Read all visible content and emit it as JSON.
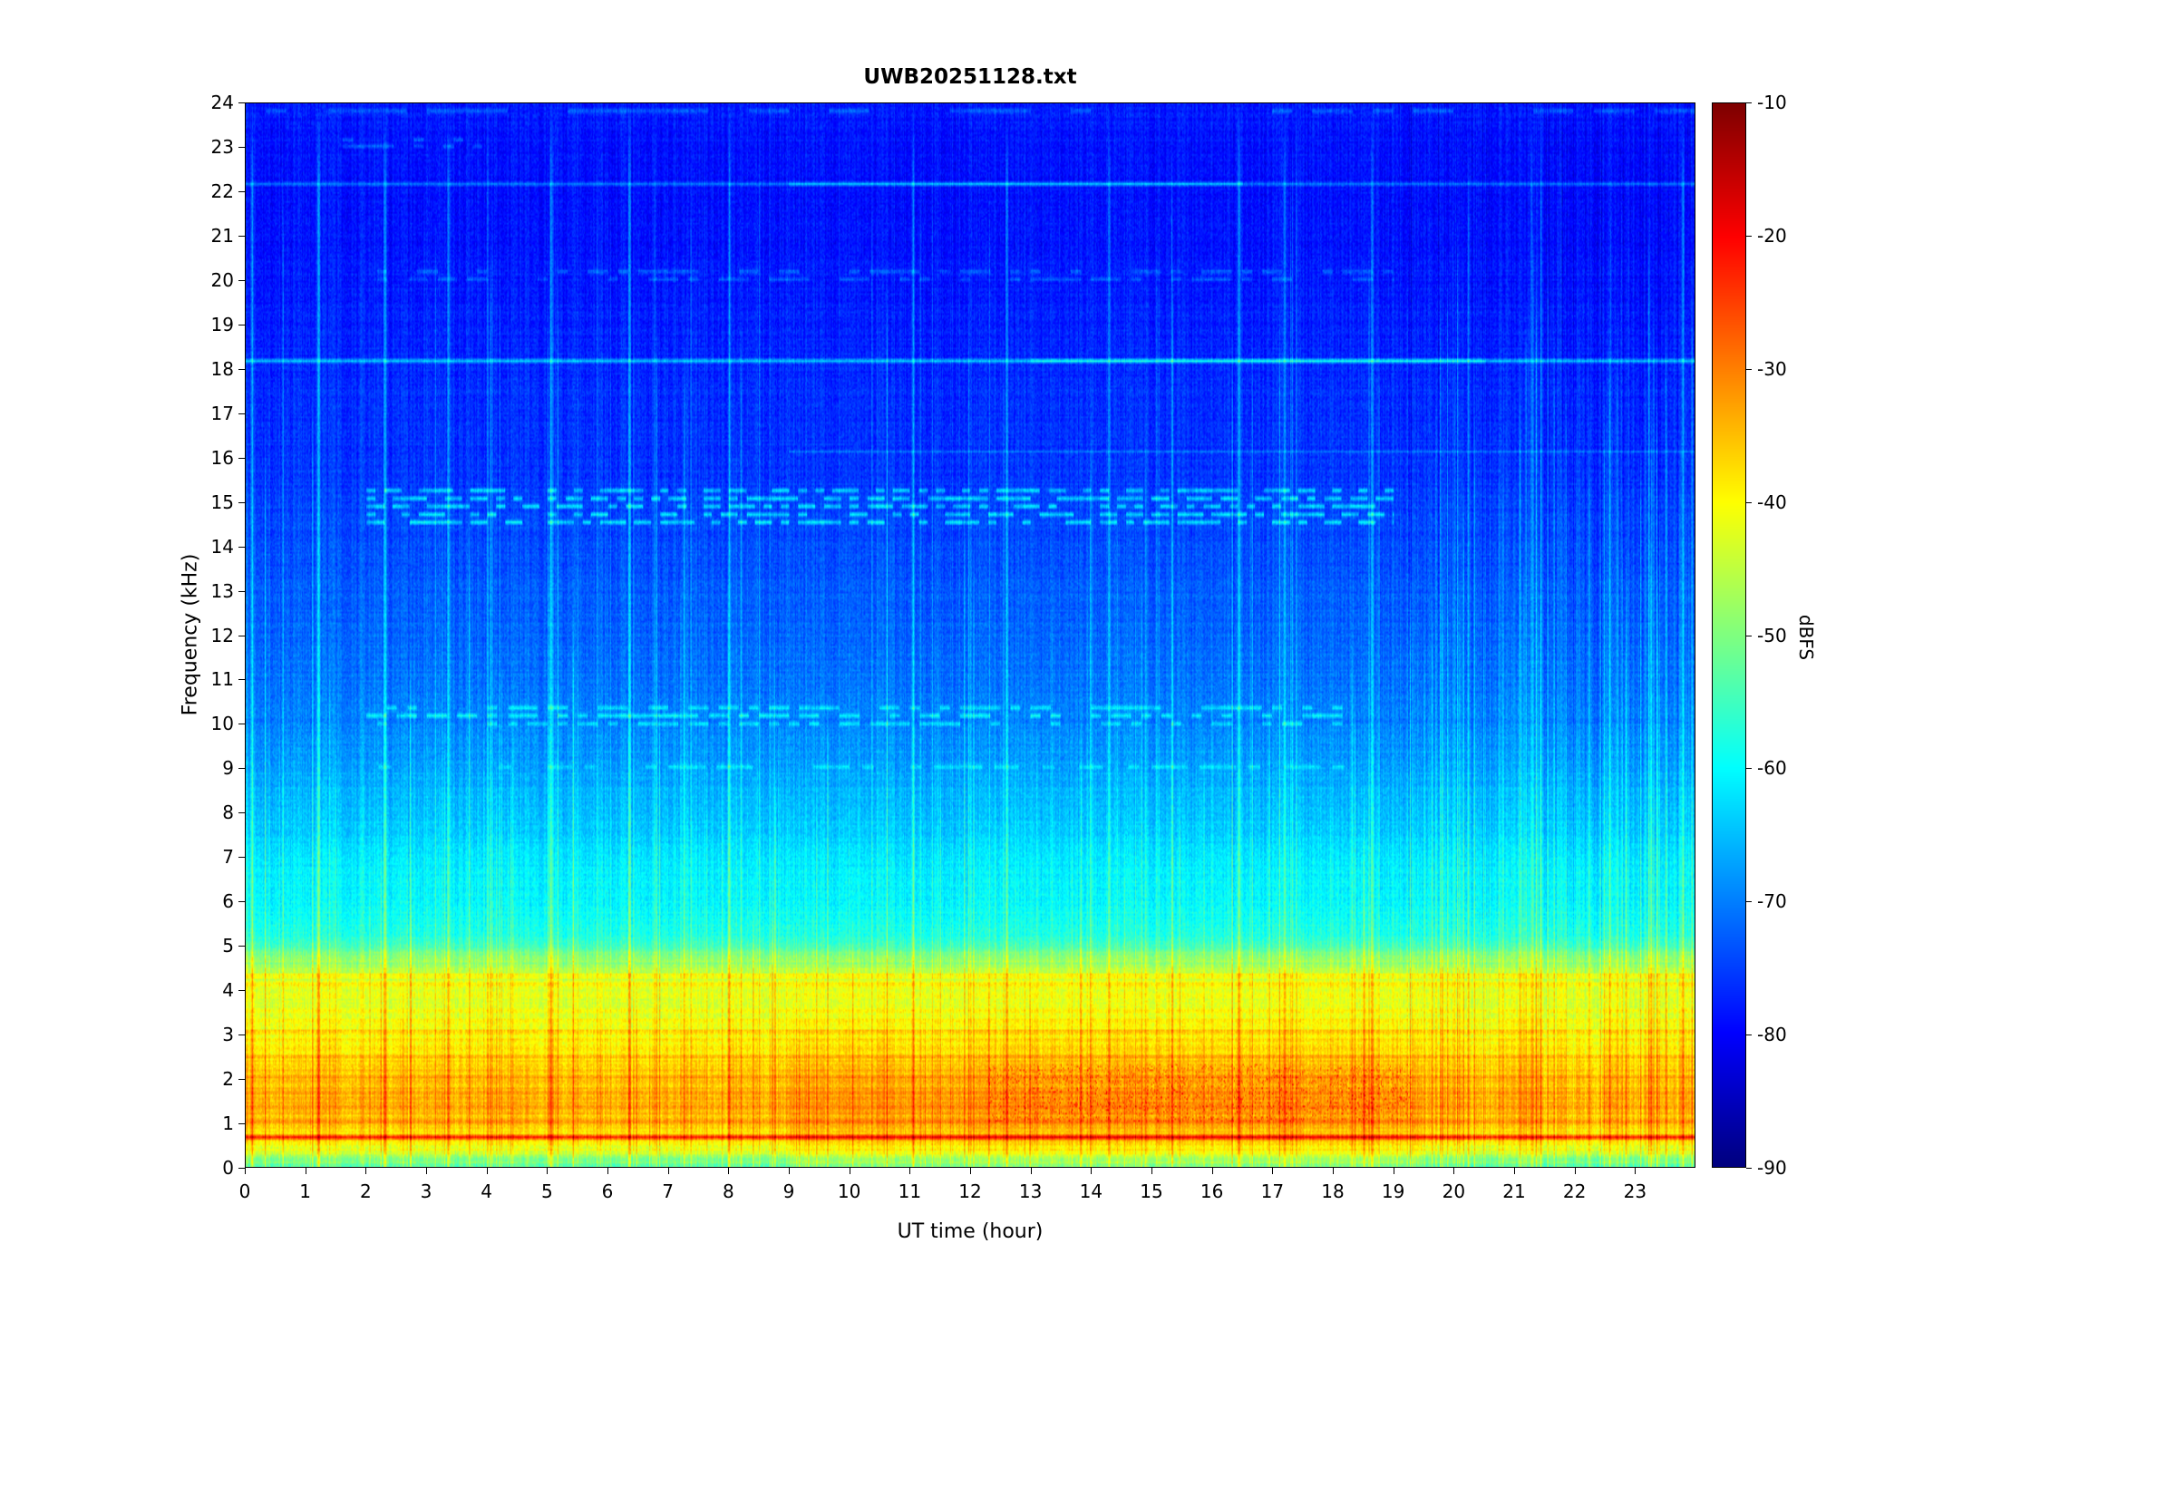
{
  "title": "UWB20251128.txt",
  "chart_data": {
    "type": "heatmap",
    "title": "UWB20251128.txt",
    "xlabel": "UT time (hour)",
    "ylabel": "Frequency (kHz)",
    "colorbar_label": "dBFS",
    "xlim": [
      0,
      24
    ],
    "ylim": [
      0,
      24
    ],
    "zlim": [
      -90,
      -10
    ],
    "x_tick_labels": [
      "0",
      "1",
      "2",
      "3",
      "4",
      "5",
      "6",
      "7",
      "8",
      "9",
      "10",
      "11",
      "12",
      "13",
      "14",
      "15",
      "16",
      "17",
      "18",
      "19",
      "20",
      "21",
      "22",
      "23"
    ],
    "y_tick_labels": [
      "0",
      "1",
      "2",
      "3",
      "4",
      "5",
      "6",
      "7",
      "8",
      "9",
      "10",
      "11",
      "12",
      "13",
      "14",
      "15",
      "16",
      "17",
      "18",
      "19",
      "20",
      "21",
      "22",
      "23",
      "24"
    ],
    "colorbar_tick_labels": [
      "-10",
      "-20",
      "-30",
      "-40",
      "-50",
      "-60",
      "-70",
      "-80",
      "-90"
    ],
    "colormap": "jet",
    "colormap_stops": [
      "#000080",
      "#0000ff",
      "#00ffff",
      "#80ff80",
      "#ffff00",
      "#ff8000",
      "#ff0000",
      "#800000"
    ],
    "background_profile_dbfs": [
      [
        0,
        -52
      ],
      [
        0.3,
        -47
      ],
      [
        0.5,
        -40
      ],
      [
        0.8,
        -37
      ],
      [
        1.2,
        -35
      ],
      [
        1.8,
        -35
      ],
      [
        2.4,
        -37
      ],
      [
        3,
        -40
      ],
      [
        3.6,
        -42
      ],
      [
        4.3,
        -44
      ],
      [
        4.7,
        -50
      ],
      [
        5.2,
        -58
      ],
      [
        6,
        -60
      ],
      [
        7,
        -62
      ],
      [
        8,
        -65
      ],
      [
        9,
        -67
      ],
      [
        10,
        -70
      ],
      [
        12,
        -72
      ],
      [
        14,
        -74
      ],
      [
        16,
        -76
      ],
      [
        18,
        -77
      ],
      [
        20,
        -78
      ],
      [
        22,
        -79
      ],
      [
        24,
        -78
      ]
    ],
    "features": {
      "horizontal_lines": [
        {
          "freq_khz": 0.65,
          "halfwidth_khz": 0.08,
          "boost_db": 16,
          "t0": 0,
          "t1": 24
        },
        {
          "freq_khz": 18.2,
          "halfwidth_khz": 0.07,
          "boost_db": 13,
          "t0": 0,
          "t1": 24,
          "peak_t0": 13,
          "peak_t1": 20.5,
          "peak_extra_db": 6
        },
        {
          "freq_khz": 22.2,
          "halfwidth_khz": 0.06,
          "boost_db": 9,
          "t0": 0,
          "t1": 24,
          "peak_t0": 9,
          "peak_t1": 16.5,
          "peak_extra_db": 6
        },
        {
          "freq_khz": 16.15,
          "halfwidth_khz": 0.05,
          "boost_db": 5,
          "t0": 9,
          "t1": 24
        }
      ],
      "dashed_bands": [
        {
          "rows_khz": [
            14.55,
            14.73,
            14.91,
            15.09,
            15.27
          ],
          "boost_db": 15,
          "t0": 2,
          "t1": 19,
          "duty": 0.55,
          "segments_per_hour": 7
        },
        {
          "rows_khz": [
            10.0,
            10.18,
            10.36
          ],
          "boost_db": 11,
          "t0": 2,
          "t1": 18.3,
          "duty": 0.5,
          "segments_per_hour": 6
        },
        {
          "rows_khz": [
            9.02
          ],
          "boost_db": 8,
          "t0": 2.2,
          "t1": 18.5,
          "duty": 0.45,
          "segments_per_hour": 5
        },
        {
          "rows_khz": [
            20.05,
            20.22
          ],
          "boost_db": 7,
          "t0": 2,
          "t1": 19,
          "duty": 0.5,
          "segments_per_hour": 6
        },
        {
          "rows_khz": [
            23.05,
            23.2
          ],
          "boost_db": 8,
          "t0": 1.6,
          "t1": 3.9,
          "duty": 0.5,
          "segments_per_hour": 6
        },
        {
          "rows_khz": [
            23.85
          ],
          "boost_db": 8,
          "t0": 0,
          "t1": 24,
          "duty": 0.5,
          "segments_per_hour": 3
        }
      ],
      "tall_streak_times": [
        {
          "t": 0.1,
          "boost_db": 10
        },
        {
          "t": 1.2,
          "boost_db": 12
        },
        {
          "t": 2.3,
          "boost_db": 11
        },
        {
          "t": 3.35,
          "boost_db": 9
        },
        {
          "t": 5.05,
          "boost_db": 9
        },
        {
          "t": 6.35,
          "boost_db": 10
        },
        {
          "t": 8.0,
          "boost_db": 8
        },
        {
          "t": 11.05,
          "boost_db": 9
        },
        {
          "t": 12.6,
          "boost_db": 10
        },
        {
          "t": 14.3,
          "boost_db": 8
        },
        {
          "t": 16.45,
          "boost_db": 10
        },
        {
          "t": 17.2,
          "boost_db": 9
        },
        {
          "t": 18.65,
          "boost_db": 9
        },
        {
          "t": 21.3,
          "boost_db": 8
        },
        {
          "t": 23.8,
          "boost_db": 10
        }
      ],
      "speckle_region": {
        "f0": 1.0,
        "f1": 2.3,
        "t0": 12.3,
        "t1": 19.3,
        "prob": 0.22,
        "max_boost_db": 9
      },
      "fine_rows_khz": [
        0.32,
        1.02,
        1.32,
        1.65,
        2.02,
        2.48,
        3.05,
        4.08,
        4.3
      ],
      "vertical_streaks": {
        "prob": 0.24,
        "prob_late": 0.45,
        "late_after_t": 19.2,
        "max_boost_db": 9
      },
      "midday_lowfreq_boost": {
        "t0": 9,
        "t1": 19.5,
        "f_max_khz": 5,
        "boost_db": 3
      }
    }
  }
}
